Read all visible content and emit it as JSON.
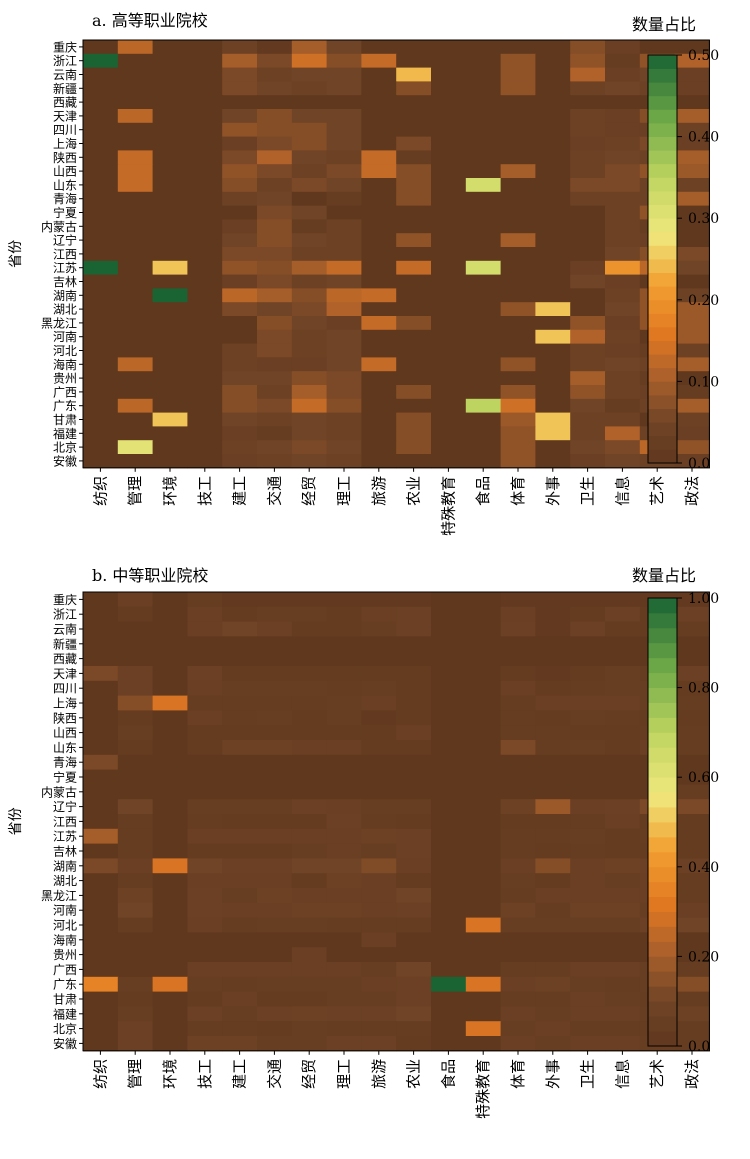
{
  "chart_data": [
    {
      "type": "heatmap",
      "title": "a. 高等职业院校",
      "ylabel": "省份",
      "legend_title": "数量占比",
      "colorbar_ticks": [
        "0.0",
        "0.10",
        "0.20",
        "0.30",
        "0.40",
        "0.50"
      ],
      "range": [
        0,
        0.5
      ],
      "rows": [
        "重庆",
        "浙江",
        "云南",
        "新疆",
        "西藏",
        "天津",
        "四川",
        "上海",
        "陕西",
        "山西",
        "山东",
        "青海",
        "宁夏",
        "内蒙古",
        "辽宁",
        "江西",
        "江苏",
        "吉林",
        "湖南",
        "湖北",
        "黑龙江",
        "河南",
        "河北",
        "海南",
        "贵州",
        "广西",
        "广东",
        "甘肃",
        "福建",
        "北京",
        "安徽"
      ],
      "columns": [
        "纺织",
        "管理",
        "环境",
        "技工",
        "建工",
        "交通",
        "经贸",
        "理工",
        "旅游",
        "农业",
        "特殊教育",
        "食品",
        "体育",
        "外事",
        "卫生",
        "信息",
        "艺术",
        "政法"
      ],
      "values": [
        [
          0,
          0.12,
          0,
          0,
          0.04,
          0.01,
          0.1,
          0.05,
          0,
          0,
          0,
          0,
          0,
          0,
          0.07,
          0.03,
          0,
          0
        ],
        [
          0.5,
          0,
          0,
          0,
          0.1,
          0.06,
          0.14,
          0.07,
          0.13,
          0,
          0,
          0,
          0.08,
          0,
          0.08,
          0.02,
          0.08,
          0.11
        ],
        [
          0,
          0,
          0,
          0,
          0.06,
          0.04,
          0.05,
          0.05,
          0,
          0.24,
          0,
          0,
          0.08,
          0,
          0.11,
          0.03,
          0.05,
          0.03
        ],
        [
          0,
          0,
          0,
          0,
          0.06,
          0.05,
          0.04,
          0.05,
          0,
          0.07,
          0,
          0,
          0.08,
          0,
          0.04,
          0.05,
          0.04,
          0.03
        ],
        [
          0,
          0,
          0,
          0,
          0,
          0,
          0,
          0,
          0,
          0,
          0,
          0,
          0,
          0,
          0,
          0,
          0,
          0
        ],
        [
          0,
          0.12,
          0,
          0,
          0.05,
          0.07,
          0.05,
          0.05,
          0,
          0,
          0,
          0,
          0,
          0,
          0.04,
          0.03,
          0.07,
          0.1
        ],
        [
          0,
          0,
          0,
          0,
          0.08,
          0.07,
          0.07,
          0.05,
          0,
          0,
          0,
          0,
          0,
          0,
          0.04,
          0.03,
          0.03,
          0.04
        ],
        [
          0,
          0,
          0,
          0,
          0.03,
          0.06,
          0.07,
          0.05,
          0,
          0.06,
          0,
          0,
          0,
          0,
          0.03,
          0.04,
          0.06,
          0.03
        ],
        [
          0,
          0.13,
          0,
          0,
          0.06,
          0.11,
          0.05,
          0.04,
          0.13,
          0.02,
          0,
          0,
          0,
          0,
          0.04,
          0.05,
          0.04,
          0.1
        ],
        [
          0,
          0.13,
          0,
          0,
          0.08,
          0.06,
          0.04,
          0.06,
          0.13,
          0.07,
          0,
          0,
          0.1,
          0,
          0.04,
          0.06,
          0.08,
          0.09
        ],
        [
          0,
          0.13,
          0,
          0,
          0.07,
          0.04,
          0.06,
          0.05,
          0,
          0.07,
          0,
          0.32,
          0,
          0,
          0.06,
          0.06,
          0.04,
          0.04
        ],
        [
          0,
          0,
          0,
          0,
          0.04,
          0.05,
          0,
          0.02,
          0,
          0.07,
          0,
          0,
          0,
          0,
          0.04,
          0.04,
          0.04,
          0.1
        ],
        [
          0,
          0,
          0,
          0,
          0,
          0.06,
          0.05,
          0,
          0,
          0,
          0,
          0,
          0,
          0,
          0,
          0.04,
          0.08,
          0
        ],
        [
          0,
          0,
          0,
          0,
          0.03,
          0.07,
          0.02,
          0.04,
          0,
          0,
          0,
          0,
          0,
          0,
          0,
          0.04,
          0.02,
          0
        ],
        [
          0,
          0,
          0,
          0,
          0.05,
          0.07,
          0.05,
          0.04,
          0,
          0.08,
          0,
          0,
          0.1,
          0,
          0,
          0.04,
          0.03,
          0
        ],
        [
          0,
          0,
          0,
          0,
          0.06,
          0.06,
          0.04,
          0.04,
          0,
          0,
          0,
          0,
          0,
          0,
          0,
          0.05,
          0.07,
          0.06
        ],
        [
          0.5,
          0,
          0.25,
          0,
          0.08,
          0.07,
          0.1,
          0.13,
          0,
          0.13,
          0,
          0.32,
          0,
          0,
          0.03,
          0.2,
          0.12,
          0.05
        ],
        [
          0,
          0,
          0,
          0,
          0.03,
          0.06,
          0.04,
          0.05,
          0,
          0,
          0,
          0,
          0,
          0,
          0.05,
          0.03,
          0,
          0
        ],
        [
          0,
          0,
          0.5,
          0,
          0.12,
          0.1,
          0.07,
          0.12,
          0.13,
          0,
          0,
          0,
          0,
          0,
          0,
          0.04,
          0.08,
          0.04
        ],
        [
          0,
          0,
          0,
          0,
          0.06,
          0.05,
          0.06,
          0.11,
          0,
          0,
          0,
          0,
          0.08,
          0.25,
          0,
          0.05,
          0.08,
          0.09
        ],
        [
          0,
          0,
          0,
          0,
          0,
          0.07,
          0.05,
          0.03,
          0.13,
          0.07,
          0,
          0,
          0,
          0,
          0.08,
          0.03,
          0.08,
          0.09
        ],
        [
          0,
          0,
          0,
          0,
          0,
          0.06,
          0.04,
          0.05,
          0,
          0,
          0,
          0,
          0,
          0.25,
          0.11,
          0.04,
          0,
          0.09
        ],
        [
          0,
          0,
          0,
          0,
          0.04,
          0.06,
          0.04,
          0.05,
          0,
          0,
          0,
          0,
          0,
          0,
          0.04,
          0.03,
          0.02,
          0.04
        ],
        [
          0,
          0.12,
          0,
          0,
          0.04,
          0.03,
          0.03,
          0.05,
          0.13,
          0,
          0,
          0,
          0.08,
          0,
          0.04,
          0.05,
          0.04,
          0.1
        ],
        [
          0,
          0,
          0,
          0,
          0.05,
          0.05,
          0.07,
          0.06,
          0,
          0,
          0,
          0,
          0,
          0,
          0.1,
          0.04,
          0.02,
          0
        ],
        [
          0,
          0,
          0,
          0,
          0.07,
          0.04,
          0.1,
          0.06,
          0,
          0.07,
          0,
          0,
          0.08,
          0,
          0.08,
          0.04,
          0.03,
          0.02
        ],
        [
          0,
          0.12,
          0,
          0,
          0.07,
          0.06,
          0.13,
          0.07,
          0,
          0,
          0,
          0.35,
          0.14,
          0,
          0.05,
          0.02,
          0.04,
          0.1
        ],
        [
          0,
          0,
          0.25,
          0,
          0.05,
          0.04,
          0.05,
          0.04,
          0,
          0.07,
          0,
          0,
          0.09,
          0.25,
          0.04,
          0.04,
          0,
          0.04
        ],
        [
          0,
          0,
          0,
          0,
          0.03,
          0.02,
          0.05,
          0.04,
          0,
          0.07,
          0,
          0,
          0.08,
          0.25,
          0.04,
          0.11,
          0.04,
          0.03
        ],
        [
          0,
          0.3,
          0,
          0,
          0.04,
          0.05,
          0.06,
          0.05,
          0,
          0.07,
          0,
          0,
          0.08,
          0,
          0.05,
          0.06,
          0.12,
          0.08
        ],
        [
          0,
          0,
          0,
          0,
          0.03,
          0.04,
          0.05,
          0.04,
          0,
          0,
          0,
          0,
          0.08,
          0,
          0.03,
          0.05,
          0.04,
          0.03
        ]
      ]
    },
    {
      "type": "heatmap",
      "title": "b. 中等职业院校",
      "ylabel": "省份",
      "legend_title": "数量占比",
      "colorbar_ticks": [
        "0.0",
        "0.20",
        "0.40",
        "0.60",
        "0.80",
        "1.00"
      ],
      "range": [
        0,
        1.0
      ],
      "rows": [
        "重庆",
        "浙江",
        "云南",
        "新疆",
        "西藏",
        "天津",
        "四川",
        "上海",
        "陕西",
        "山西",
        "山东",
        "青海",
        "宁夏",
        "内蒙古",
        "辽宁",
        "江西",
        "江苏",
        "吉林",
        "湖南",
        "湖北",
        "黑龙江",
        "河南",
        "河北",
        "海南",
        "贵州",
        "广西",
        "广东",
        "甘肃",
        "福建",
        "北京",
        "安徽"
      ],
      "columns": [
        "纺织",
        "管理",
        "环境",
        "技工",
        "建工",
        "交通",
        "经贸",
        "理工",
        "旅游",
        "农业",
        "食品",
        "特殊教育",
        "体育",
        "外事",
        "卫生",
        "信息",
        "艺术",
        "政法"
      ],
      "values": [
        [
          0,
          0.06,
          0,
          0.04,
          0.02,
          0.02,
          0.02,
          0.02,
          0.02,
          0.02,
          0,
          0,
          0.02,
          0.02,
          0.02,
          0.02,
          0.02,
          0.02
        ],
        [
          0,
          0.03,
          0,
          0.06,
          0.03,
          0.05,
          0.05,
          0.03,
          0.06,
          0.07,
          0,
          0,
          0.06,
          0.02,
          0.03,
          0.07,
          0.03,
          0.07
        ],
        [
          0,
          0,
          0,
          0.06,
          0.1,
          0.07,
          0.03,
          0.03,
          0.05,
          0.07,
          0,
          0,
          0.07,
          0.02,
          0.07,
          0.03,
          0.03,
          0.04
        ],
        [
          0,
          0,
          0,
          0,
          0,
          0,
          0,
          0,
          0,
          0,
          0,
          0,
          0,
          0,
          0,
          0,
          0,
          0
        ],
        [
          0,
          0,
          0,
          0,
          0,
          0,
          0,
          0,
          0,
          0,
          0,
          0,
          0,
          0,
          0,
          0,
          0,
          0
        ],
        [
          0.12,
          0.07,
          0,
          0.07,
          0.03,
          0.03,
          0.03,
          0.03,
          0.03,
          0.03,
          0,
          0,
          0.03,
          0.02,
          0.03,
          0.05,
          0.04,
          0.07
        ],
        [
          0,
          0.07,
          0,
          0.06,
          0.05,
          0.05,
          0.05,
          0.04,
          0.05,
          0.03,
          0,
          0,
          0.06,
          0.03,
          0.04,
          0.05,
          0.05,
          0.03
        ],
        [
          0,
          0.14,
          0.3,
          0.04,
          0.04,
          0.04,
          0.04,
          0.05,
          0.06,
          0.03,
          0,
          0,
          0.04,
          0.06,
          0.06,
          0.06,
          0.05,
          0.04
        ],
        [
          0,
          0.03,
          0,
          0.06,
          0.04,
          0.05,
          0.03,
          0.05,
          0.02,
          0.03,
          0,
          0,
          0.04,
          0.03,
          0.05,
          0.04,
          0.03,
          0.03
        ],
        [
          0,
          0.05,
          0,
          0.03,
          0.03,
          0.03,
          0.03,
          0.03,
          0.03,
          0.06,
          0,
          0,
          0.04,
          0.04,
          0.03,
          0.03,
          0.04,
          0.04
        ],
        [
          0,
          0.03,
          0,
          0.03,
          0.08,
          0.08,
          0.06,
          0.06,
          0.03,
          0.03,
          0,
          0,
          0.12,
          0.04,
          0.05,
          0.03,
          0.06,
          0.04
        ],
        [
          0.12,
          0,
          0,
          0,
          0,
          0,
          0,
          0,
          0,
          0,
          0,
          0,
          0,
          0,
          0,
          0,
          0,
          0
        ],
        [
          0,
          0,
          0,
          0,
          0,
          0,
          0,
          0,
          0,
          0,
          0,
          0,
          0,
          0,
          0,
          0,
          0,
          0
        ],
        [
          0,
          0,
          0,
          0,
          0,
          0,
          0,
          0,
          0,
          0,
          0,
          0,
          0,
          0,
          0,
          0,
          0,
          0.04
        ],
        [
          0,
          0.1,
          0,
          0.05,
          0.05,
          0.05,
          0.07,
          0.06,
          0.05,
          0.05,
          0,
          0,
          0.08,
          0.18,
          0.06,
          0.07,
          0.12,
          0.12
        ],
        [
          0,
          0.04,
          0,
          0.04,
          0.03,
          0.03,
          0.03,
          0.07,
          0.04,
          0.03,
          0,
          0,
          0.03,
          0.03,
          0.04,
          0.06,
          0.03,
          0.03
        ],
        [
          0.2,
          0.04,
          0,
          0.06,
          0.06,
          0.06,
          0.06,
          0.06,
          0.08,
          0.07,
          0,
          0,
          0.04,
          0.04,
          0.05,
          0.03,
          0.04,
          0.03
        ],
        [
          0,
          0.04,
          0,
          0.03,
          0.03,
          0.03,
          0.05,
          0.06,
          0.05,
          0.07,
          0,
          0,
          0.04,
          0.03,
          0.04,
          0.03,
          0.03,
          0.03
        ],
        [
          0.12,
          0.06,
          0.3,
          0.1,
          0.07,
          0.07,
          0.1,
          0.1,
          0.13,
          0.06,
          0,
          0,
          0.06,
          0.14,
          0.06,
          0.08,
          0.07,
          0.07
        ],
        [
          0,
          0.04,
          0,
          0.06,
          0.06,
          0.06,
          0.03,
          0.08,
          0.06,
          0.03,
          0,
          0,
          0.05,
          0.03,
          0.06,
          0.05,
          0.06,
          0.04
        ],
        [
          0,
          0.08,
          0,
          0.07,
          0.05,
          0.08,
          0.06,
          0.06,
          0.06,
          0.1,
          0,
          0,
          0.04,
          0.06,
          0.06,
          0.06,
          0.06,
          0.04
        ],
        [
          0,
          0.1,
          0,
          0.07,
          0.06,
          0.06,
          0.08,
          0.08,
          0.06,
          0.07,
          0,
          0,
          0.08,
          0.04,
          0.08,
          0.08,
          0.05,
          0.06
        ],
        [
          0,
          0.04,
          0,
          0.06,
          0.04,
          0.05,
          0.05,
          0.04,
          0.04,
          0.04,
          0,
          0.3,
          0.05,
          0.05,
          0.05,
          0.05,
          0.07,
          0.1
        ],
        [
          0,
          0,
          0,
          0,
          0,
          0,
          0,
          0,
          0.06,
          0,
          0,
          0,
          0,
          0,
          0,
          0,
          0,
          0
        ],
        [
          0,
          0,
          0,
          0,
          0,
          0,
          0.06,
          0,
          0,
          0,
          0,
          0,
          0,
          0,
          0,
          0,
          0,
          0
        ],
        [
          0,
          0,
          0,
          0.06,
          0.06,
          0.06,
          0.06,
          0.06,
          0.05,
          0.1,
          0,
          0,
          0.04,
          0.04,
          0.06,
          0.06,
          0.05,
          0.04
        ],
        [
          0.35,
          0.05,
          0.3,
          0.05,
          0.04,
          0.05,
          0.05,
          0.05,
          0.06,
          0.07,
          1.0,
          0.3,
          0.06,
          0.08,
          0.05,
          0.04,
          0.05,
          0.14
        ],
        [
          0,
          0.03,
          0,
          0.03,
          0.06,
          0.03,
          0.03,
          0.05,
          0.05,
          0.07,
          0,
          0,
          0.04,
          0.04,
          0.06,
          0.05,
          0.04,
          0.04
        ],
        [
          0,
          0.05,
          0,
          0.07,
          0.05,
          0.07,
          0.08,
          0.07,
          0.07,
          0.1,
          0,
          0,
          0.06,
          0.05,
          0.06,
          0.06,
          0.05,
          0.08
        ],
        [
          0,
          0.07,
          0,
          0.04,
          0.04,
          0.03,
          0.05,
          0.04,
          0.04,
          0.04,
          0,
          0.3,
          0.05,
          0.06,
          0.04,
          0.04,
          0.04,
          0.04
        ],
        [
          0,
          0.07,
          0,
          0.08,
          0.08,
          0.05,
          0.05,
          0.07,
          0.07,
          0.03,
          0,
          0,
          0.06,
          0.05,
          0.06,
          0.06,
          0.05,
          0.04
        ]
      ]
    }
  ]
}
